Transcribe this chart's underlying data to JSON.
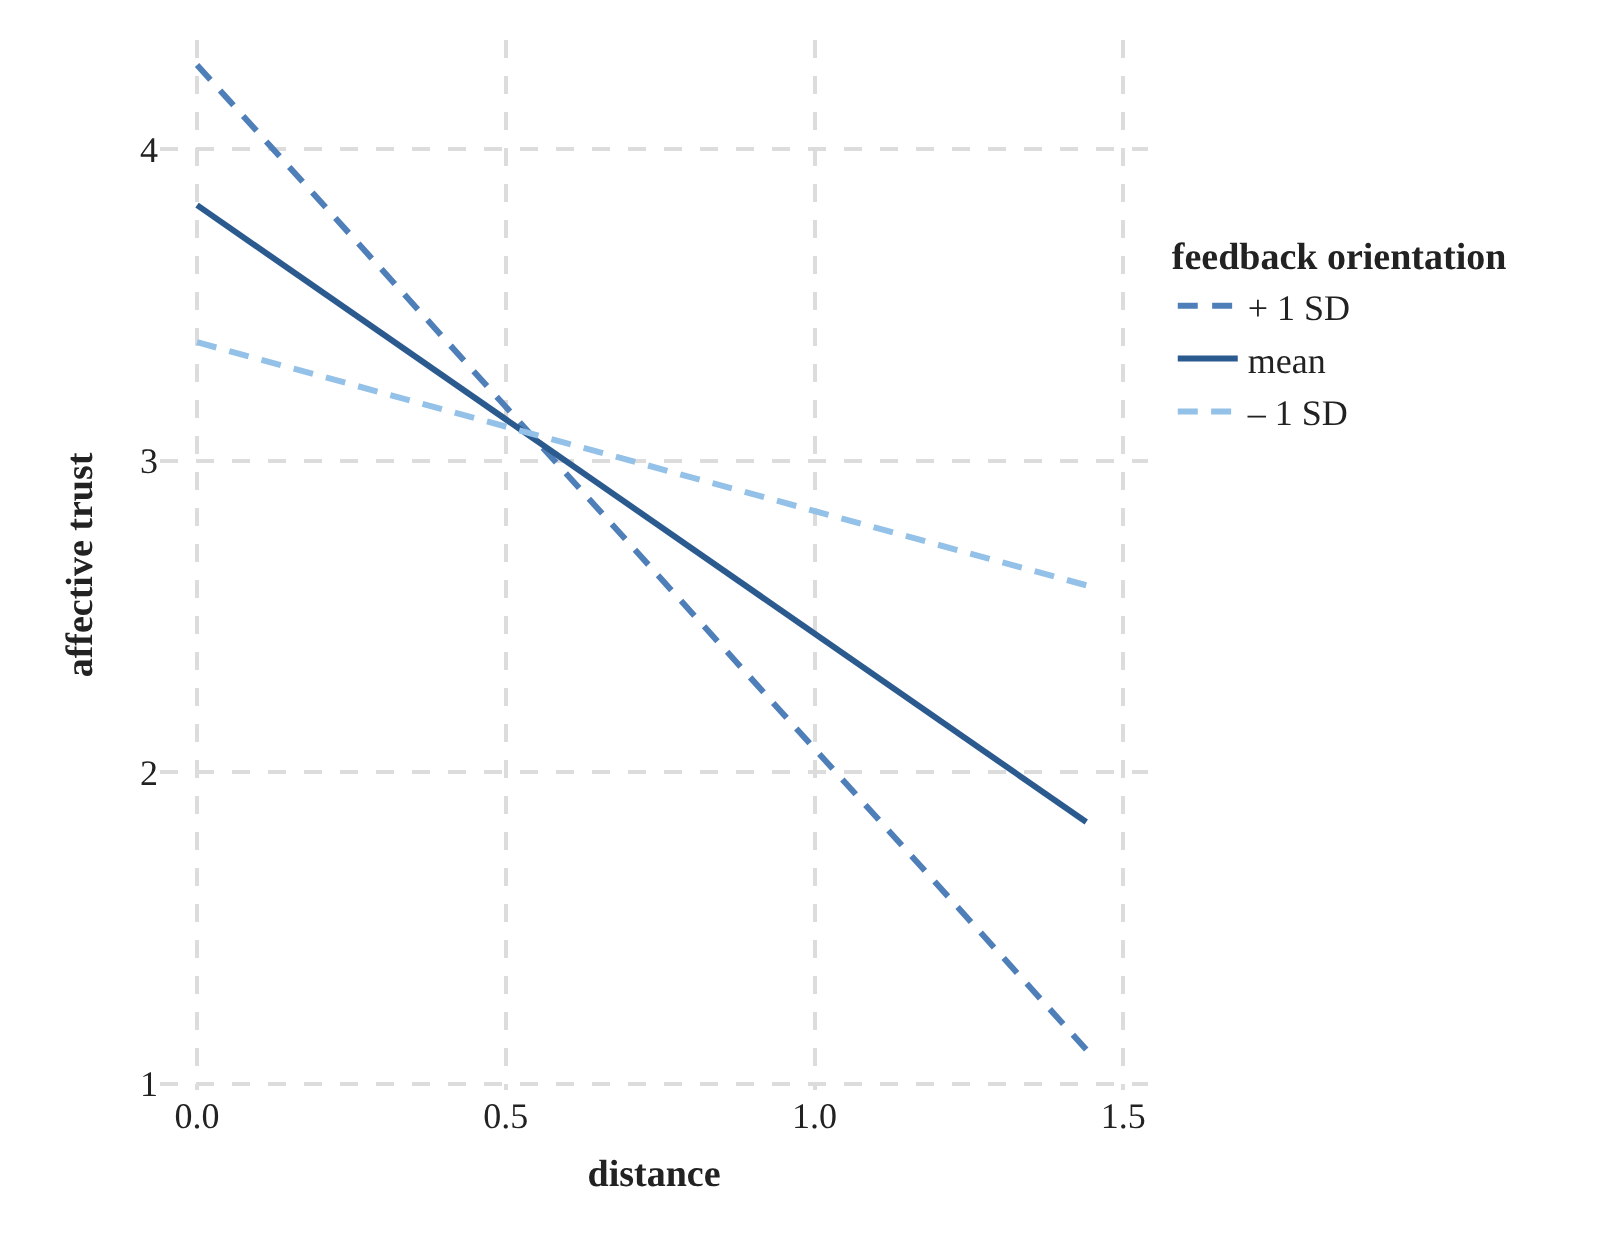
{
  "chart_data": {
    "type": "line",
    "xlabel": "distance",
    "ylabel": "affective trust",
    "legend_title": "feedback orientation",
    "legend": "right",
    "grid": true,
    "marker": "none",
    "xlim": [
      -0.06,
      1.54
    ],
    "ylim": [
      0.98,
      4.35
    ],
    "xticks": [
      {
        "value": 0,
        "label": "0.0"
      },
      {
        "value": 0.5,
        "label": "0.5"
      },
      {
        "value": 1,
        "label": "1.0"
      },
      {
        "value": 1.5,
        "label": "1.5"
      }
    ],
    "yticks": [
      1,
      2,
      3,
      4
    ],
    "x": [
      0,
      1.44
    ],
    "series": [
      {
        "name": "+ 1 SD",
        "color": "#4f7fb8",
        "line_style": "dashed",
        "values": [
          4.27,
          1.11
        ]
      },
      {
        "name": "mean",
        "color": "#2b5a8f",
        "line_style": "solid",
        "values": [
          3.82,
          1.84
        ]
      },
      {
        "name": "– 1 SD",
        "color": "#93c1e8",
        "line_style": "dashed",
        "values": [
          3.38,
          2.6
        ]
      }
    ]
  }
}
